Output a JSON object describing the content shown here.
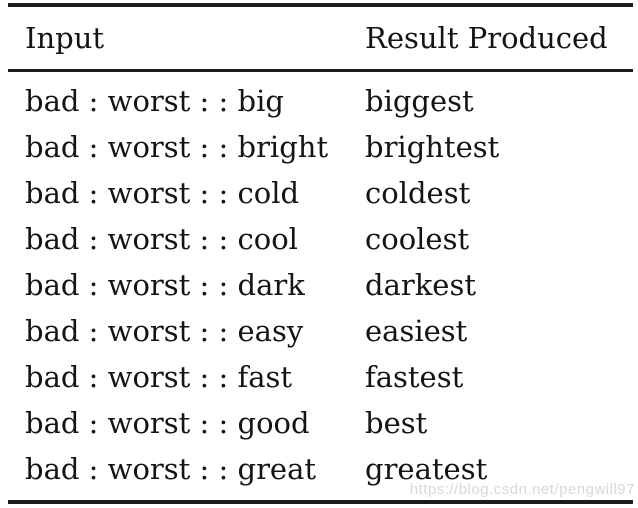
{
  "table": {
    "headers": {
      "input": "Input",
      "result": "Result Produced"
    },
    "rows": [
      {
        "input": "bad : worst : : big",
        "result": "biggest"
      },
      {
        "input": "bad : worst : : bright",
        "result": "brightest"
      },
      {
        "input": "bad : worst : : cold",
        "result": "coldest"
      },
      {
        "input": "bad : worst : : cool",
        "result": "coolest"
      },
      {
        "input": "bad : worst : : dark",
        "result": "darkest"
      },
      {
        "input": "bad : worst : : easy",
        "result": "easiest"
      },
      {
        "input": "bad : worst : : fast",
        "result": "fastest"
      },
      {
        "input": "bad : worst : : good",
        "result": "best"
      },
      {
        "input": "bad : worst : : great",
        "result": "greatest"
      }
    ]
  },
  "watermark": {
    "text": "https://blog.csdn.net/pengwill97",
    "color": "#d8d8d8"
  },
  "colors": {
    "text": "#141414",
    "rule": "#1c1c1c",
    "background": "#ffffff"
  }
}
